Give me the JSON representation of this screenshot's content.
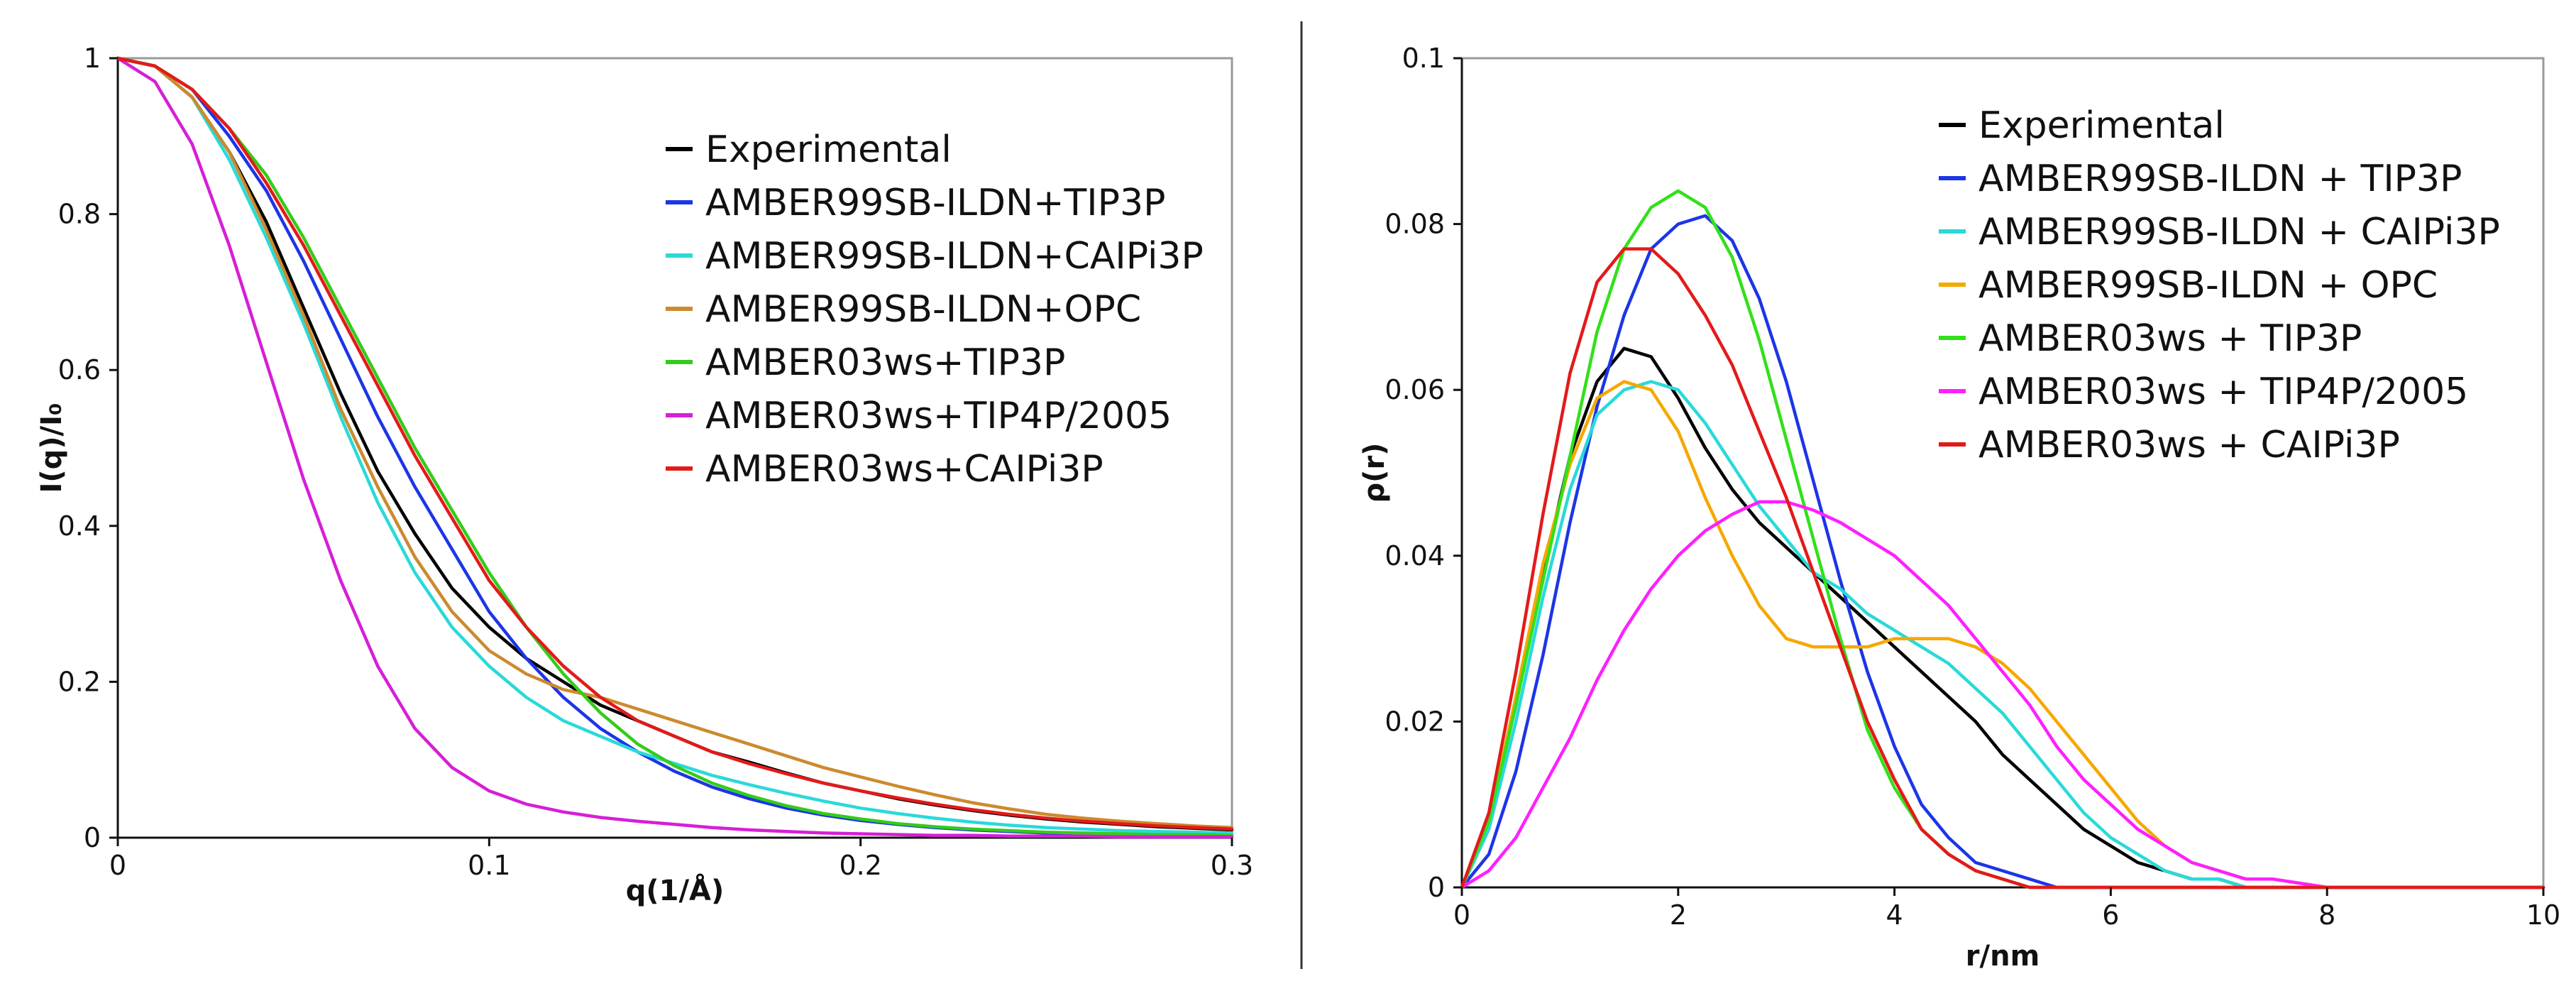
{
  "chart_data": [
    {
      "type": "line",
      "xlabel": "q(1/Å)",
      "ylabel": "I(q)/I₀",
      "xlim": [
        0,
        0.3
      ],
      "ylim": [
        0,
        1
      ],
      "x_ticks": [
        "0",
        "0.1",
        "0.2",
        "0.3"
      ],
      "y_ticks": [
        "0",
        "0.2",
        "0.4",
        "0.6",
        "0.8",
        "1"
      ],
      "x_tick_values": [
        0,
        0.1,
        0.2,
        0.3
      ],
      "y_tick_values": [
        0,
        0.2,
        0.4,
        0.6,
        0.8,
        1
      ],
      "legend_position": "center-right",
      "x": [
        0,
        0.01,
        0.02,
        0.03,
        0.04,
        0.05,
        0.06,
        0.07,
        0.08,
        0.09,
        0.1,
        0.11,
        0.12,
        0.13,
        0.14,
        0.15,
        0.16,
        0.17,
        0.18,
        0.19,
        0.2,
        0.21,
        0.22,
        0.23,
        0.24,
        0.25,
        0.26,
        0.27,
        0.28,
        0.29,
        0.3
      ],
      "series": [
        {
          "name": "Experimental",
          "color": "#000000",
          "values": [
            1,
            0.99,
            0.95,
            0.88,
            0.79,
            0.68,
            0.57,
            0.47,
            0.39,
            0.32,
            0.27,
            0.23,
            0.2,
            0.17,
            0.15,
            0.13,
            0.11,
            0.097,
            0.083,
            0.07,
            0.06,
            0.05,
            0.042,
            0.035,
            0.029,
            0.024,
            0.02,
            0.017,
            0.014,
            0.012,
            0.01
          ]
        },
        {
          "name": "AMBER99SB-ILDN+TIP3P",
          "color": "#1c35e6",
          "values": [
            1,
            0.99,
            0.96,
            0.9,
            0.83,
            0.74,
            0.64,
            0.54,
            0.45,
            0.37,
            0.29,
            0.23,
            0.18,
            0.14,
            0.11,
            0.085,
            0.065,
            0.05,
            0.038,
            0.029,
            0.022,
            0.017,
            0.013,
            0.01,
            0.008,
            0.006,
            0.005,
            0.004,
            0.003,
            0.003,
            0.002
          ]
        },
        {
          "name": "AMBER99SB-ILDN+CAIPi3P",
          "color": "#2ad9d9",
          "values": [
            1,
            0.99,
            0.95,
            0.87,
            0.77,
            0.66,
            0.54,
            0.43,
            0.34,
            0.27,
            0.22,
            0.18,
            0.15,
            0.13,
            0.11,
            0.095,
            0.08,
            0.068,
            0.057,
            0.047,
            0.038,
            0.031,
            0.025,
            0.02,
            0.016,
            0.013,
            0.011,
            0.009,
            0.008,
            0.007,
            0.006
          ]
        },
        {
          "name": "AMBER99SB-ILDN+OPC",
          "color": "#cc8a2e",
          "values": [
            1,
            0.99,
            0.95,
            0.88,
            0.78,
            0.67,
            0.55,
            0.45,
            0.36,
            0.29,
            0.24,
            0.21,
            0.19,
            0.18,
            0.165,
            0.15,
            0.135,
            0.12,
            0.105,
            0.09,
            0.078,
            0.066,
            0.055,
            0.045,
            0.037,
            0.03,
            0.025,
            0.021,
            0.018,
            0.015,
            0.013
          ]
        },
        {
          "name": "AMBER03ws+TIP3P",
          "color": "#33cc1a",
          "values": [
            1,
            0.99,
            0.96,
            0.91,
            0.85,
            0.77,
            0.68,
            0.59,
            0.5,
            0.42,
            0.34,
            0.27,
            0.21,
            0.16,
            0.12,
            0.092,
            0.07,
            0.054,
            0.041,
            0.031,
            0.024,
            0.018,
            0.014,
            0.011,
            0.009,
            0.007,
            0.006,
            0.005,
            0.004,
            0.004,
            0.003
          ]
        },
        {
          "name": "AMBER03ws+TIP4P/2005",
          "color": "#d61fd6",
          "values": [
            1,
            0.97,
            0.89,
            0.76,
            0.61,
            0.46,
            0.33,
            0.22,
            0.14,
            0.09,
            0.06,
            0.043,
            0.033,
            0.026,
            0.021,
            0.017,
            0.013,
            0.01,
            0.008,
            0.006,
            0.005,
            0.004,
            0.003,
            0.003,
            0.002,
            0.002,
            0.002,
            0.001,
            0.001,
            0.001,
            0.001
          ]
        },
        {
          "name": "AMBER03ws+CAIPi3P",
          "color": "#e31a1a",
          "values": [
            1,
            0.99,
            0.96,
            0.91,
            0.84,
            0.76,
            0.67,
            0.58,
            0.49,
            0.41,
            0.33,
            0.27,
            0.22,
            0.18,
            0.15,
            0.13,
            0.11,
            0.095,
            0.082,
            0.07,
            0.06,
            0.051,
            0.043,
            0.036,
            0.03,
            0.025,
            0.021,
            0.018,
            0.015,
            0.013,
            0.011
          ]
        }
      ]
    },
    {
      "type": "line",
      "xlabel": "r/nm",
      "ylabel": "ρ(r)",
      "xlim": [
        0,
        10
      ],
      "ylim": [
        0,
        0.1
      ],
      "x_ticks": [
        "0",
        "2",
        "4",
        "6",
        "8",
        "10"
      ],
      "y_ticks": [
        "0",
        "0.02",
        "0.04",
        "0.06",
        "0.08",
        "0.1"
      ],
      "x_tick_values": [
        0,
        2,
        4,
        6,
        8,
        10
      ],
      "y_tick_values": [
        0,
        0.02,
        0.04,
        0.06,
        0.08,
        0.1
      ],
      "legend_position": "top-right",
      "x": [
        0,
        0.25,
        0.5,
        0.75,
        1,
        1.25,
        1.5,
        1.75,
        2,
        2.25,
        2.5,
        2.75,
        3,
        3.25,
        3.5,
        3.75,
        4,
        4.25,
        4.5,
        4.75,
        5,
        5.25,
        5.5,
        5.75,
        6,
        6.25,
        6.5,
        6.75,
        7,
        7.25,
        7.5,
        8,
        8.5,
        9,
        10
      ],
      "series": [
        {
          "name": "Experimental",
          "color": "#000000",
          "values": [
            0,
            0.008,
            0.022,
            0.038,
            0.052,
            0.061,
            0.065,
            0.064,
            0.059,
            0.053,
            0.048,
            0.044,
            0.041,
            0.038,
            0.035,
            0.032,
            0.029,
            0.026,
            0.023,
            0.02,
            0.016,
            0.013,
            0.01,
            0.007,
            0.005,
            0.003,
            0.002,
            0.001,
            0.001,
            0,
            0,
            0,
            0,
            0,
            0
          ]
        },
        {
          "name": "AMBER99SB-ILDN + TIP3P",
          "color": "#1c35e6",
          "values": [
            0,
            0.004,
            0.014,
            0.028,
            0.044,
            0.058,
            0.069,
            0.077,
            0.08,
            0.081,
            0.078,
            0.071,
            0.061,
            0.049,
            0.037,
            0.026,
            0.017,
            0.01,
            0.006,
            0.003,
            0.002,
            0.001,
            0,
            0,
            0,
            0,
            0,
            0,
            0,
            0,
            0,
            0,
            0,
            0,
            0
          ]
        },
        {
          "name": "AMBER99SB-ILDN + CAIPi3P",
          "color": "#2ad9d9",
          "values": [
            0,
            0.007,
            0.02,
            0.035,
            0.048,
            0.057,
            0.06,
            0.061,
            0.06,
            0.056,
            0.051,
            0.046,
            0.042,
            0.038,
            0.036,
            0.033,
            0.031,
            0.029,
            0.027,
            0.024,
            0.021,
            0.017,
            0.013,
            0.009,
            0.006,
            0.004,
            0.002,
            0.001,
            0.001,
            0,
            0,
            0,
            0,
            0,
            0
          ]
        },
        {
          "name": "AMBER99SB-ILDN + OPC",
          "color": "#f5a800",
          "values": [
            0,
            0.008,
            0.023,
            0.039,
            0.051,
            0.059,
            0.061,
            0.06,
            0.055,
            0.047,
            0.04,
            0.034,
            0.03,
            0.029,
            0.029,
            0.029,
            0.03,
            0.03,
            0.03,
            0.029,
            0.027,
            0.024,
            0.02,
            0.016,
            0.012,
            0.008,
            0.005,
            0.003,
            0.002,
            0.001,
            0.001,
            0,
            0,
            0,
            0
          ]
        },
        {
          "name": "AMBER03ws + TIP3P",
          "color": "#33e01a",
          "values": [
            0,
            0.008,
            0.022,
            0.037,
            0.052,
            0.067,
            0.077,
            0.082,
            0.084,
            0.082,
            0.076,
            0.066,
            0.054,
            0.042,
            0.03,
            0.019,
            0.012,
            0.007,
            0.004,
            0.002,
            0.001,
            0,
            0,
            0,
            0,
            0,
            0,
            0,
            0,
            0,
            0,
            0,
            0,
            0,
            0
          ]
        },
        {
          "name": "AMBER03ws + TIP4P/2005",
          "color": "#ff1fff",
          "values": [
            0,
            0.002,
            0.006,
            0.012,
            0.018,
            0.025,
            0.031,
            0.036,
            0.04,
            0.043,
            0.045,
            0.0465,
            0.0465,
            0.0455,
            0.044,
            0.042,
            0.04,
            0.037,
            0.034,
            0.03,
            0.026,
            0.022,
            0.017,
            0.013,
            0.01,
            0.007,
            0.005,
            0.003,
            0.002,
            0.001,
            0.001,
            0,
            0,
            0,
            0
          ]
        },
        {
          "name": "AMBER03ws + CAIPi3P",
          "color": "#e31a1a",
          "values": [
            0,
            0.009,
            0.026,
            0.045,
            0.062,
            0.073,
            0.077,
            0.077,
            0.074,
            0.069,
            0.063,
            0.055,
            0.047,
            0.038,
            0.029,
            0.02,
            0.013,
            0.007,
            0.004,
            0.002,
            0.001,
            0,
            0,
            0,
            0,
            0,
            0,
            0,
            0,
            0,
            0,
            0,
            0,
            0,
            0
          ]
        }
      ]
    }
  ]
}
